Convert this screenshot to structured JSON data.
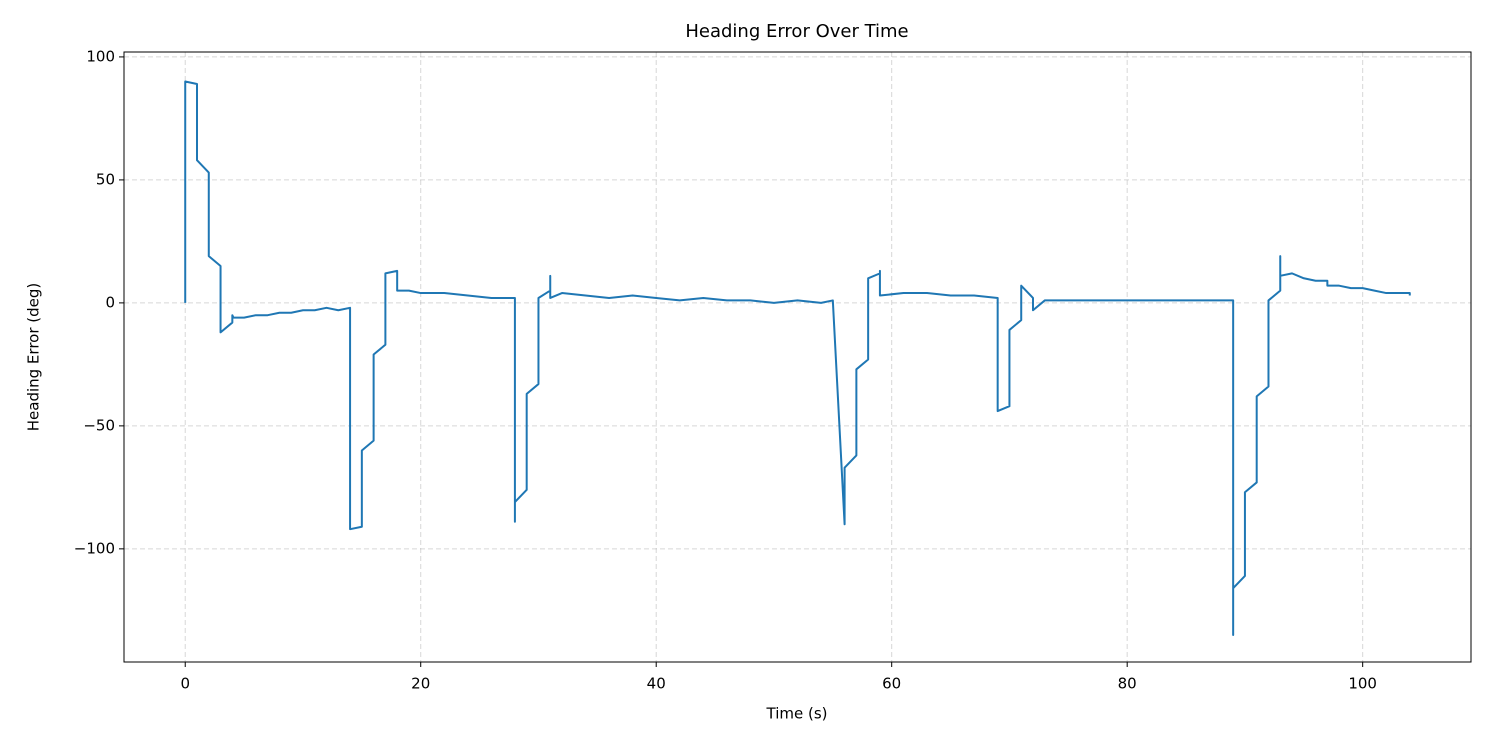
{
  "chart_data": {
    "type": "line",
    "title": "Heading Error Over Time",
    "xlabel": "Time (s)",
    "ylabel": "Heading Error (deg)",
    "color": "#1f77b4",
    "grid": true,
    "xlim": [
      -5.2,
      109.2
    ],
    "ylim": [
      -146,
      102
    ],
    "xticks": [
      0,
      20,
      40,
      60,
      80,
      100
    ],
    "yticks": [
      {
        "value": -100,
        "label": "−100"
      },
      {
        "value": -50,
        "label": "−50"
      },
      0,
      50,
      100
    ],
    "x": [
      0,
      0,
      1,
      1,
      2,
      2,
      3,
      3,
      4,
      4,
      4.1,
      5,
      6,
      7,
      8,
      9,
      10,
      11,
      12,
      13,
      14,
      14,
      15,
      15,
      16,
      16,
      17,
      17,
      18,
      18,
      19,
      20,
      22,
      24,
      26,
      28,
      28,
      28,
      29,
      29,
      30,
      30,
      31,
      31,
      31,
      32,
      34,
      36,
      38,
      40,
      42,
      44,
      46,
      48,
      50,
      52,
      54,
      55,
      56,
      56,
      57,
      57,
      58,
      58,
      59,
      59,
      59,
      61,
      63,
      65,
      67,
      69,
      69,
      70,
      70,
      71,
      71,
      72,
      72,
      73,
      75,
      80,
      82,
      85,
      89,
      89,
      89,
      90,
      90,
      91,
      91,
      92,
      92,
      93,
      93,
      93,
      94,
      95,
      96,
      97,
      97,
      98,
      99,
      100,
      101,
      102,
      104,
      104
    ],
    "y": [
      0,
      90,
      89,
      58,
      53,
      19,
      15,
      -12,
      -8,
      -5,
      -6,
      -6,
      -5,
      -5,
      -4,
      -4,
      -3,
      -3,
      -2,
      -3,
      -2,
      -92,
      -91,
      -60,
      -56,
      -21,
      -17,
      12,
      13,
      5,
      5,
      4,
      4,
      3,
      2,
      2,
      -89,
      -81,
      -76,
      -37,
      -33,
      2,
      5,
      11,
      2,
      4,
      3,
      2,
      3,
      2,
      1,
      2,
      1,
      1,
      0,
      1,
      0,
      1,
      -90,
      -67,
      -62,
      -27,
      -23,
      10,
      12,
      13,
      3,
      4,
      4,
      3,
      3,
      2,
      -44,
      -42,
      -11,
      -7,
      7,
      2,
      -3,
      1,
      1,
      1,
      1,
      1,
      1,
      -135,
      -116,
      -111,
      -77,
      -73,
      -38,
      -34,
      1,
      5,
      19,
      11,
      12,
      10,
      9,
      9,
      7,
      7,
      6,
      6,
      5,
      4,
      4,
      3
    ]
  }
}
